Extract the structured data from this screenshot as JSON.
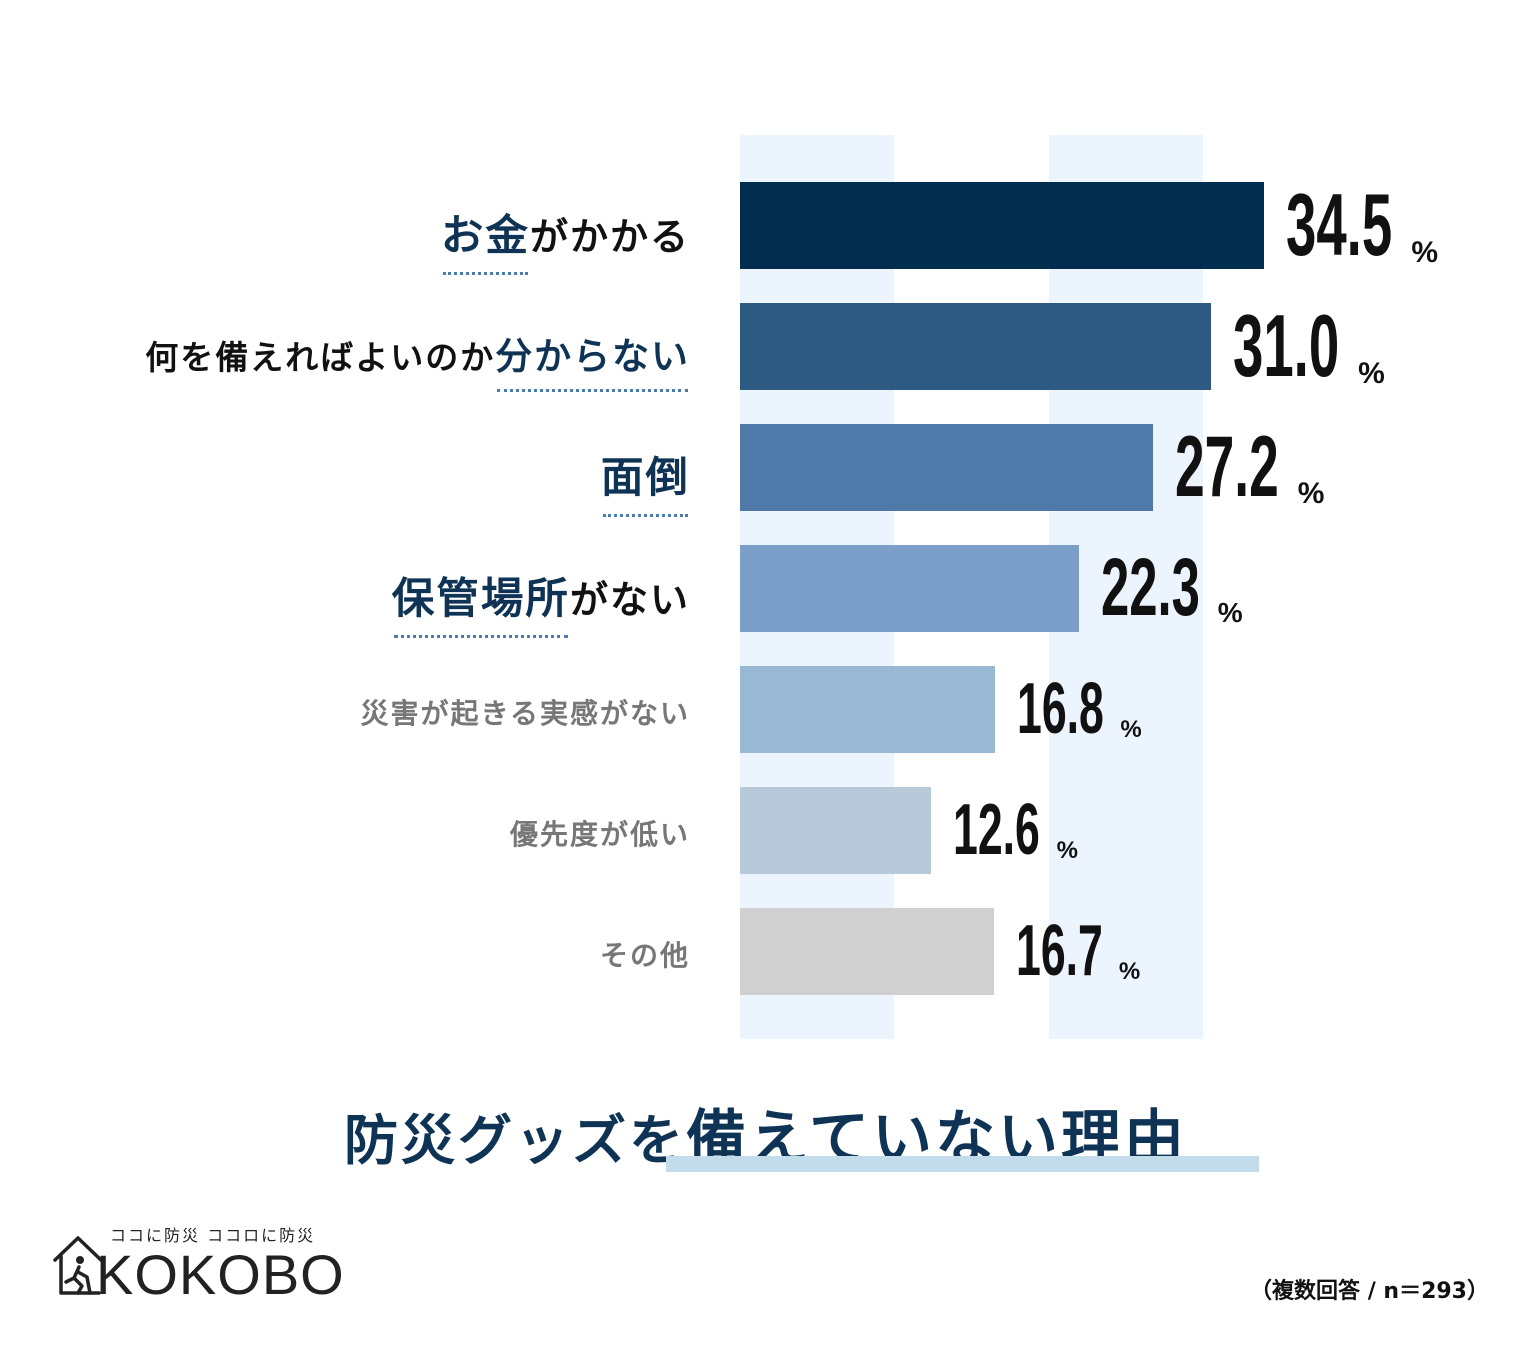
{
  "chart_data": {
    "type": "bar",
    "orientation": "horizontal",
    "title": "防災グッズを備えていない理由",
    "title_parts": [
      "防災グッズを",
      "備えていない理由"
    ],
    "categories": [
      {
        "parts": [
          "お金",
          "がかかる"
        ],
        "highlight": 0,
        "value": 34.5,
        "display": "34.5",
        "color": "#032d4e"
      },
      {
        "parts": [
          "何を備えればよいのか",
          "分からない"
        ],
        "highlight": 1,
        "value": 31.0,
        "display": "31.0",
        "color": "#2c5a82"
      },
      {
        "parts": [
          "面倒",
          ""
        ],
        "highlight": 0,
        "value": 27.2,
        "display": "27.2",
        "color": "#4f79a8"
      },
      {
        "parts": [
          "保管場所",
          "がない"
        ],
        "highlight": 0,
        "value": 22.3,
        "display": "22.3",
        "color": "#7b9fc8"
      },
      {
        "parts": [
          "災害が起きる実感がない",
          ""
        ],
        "highlight": -1,
        "value": 16.8,
        "display": "16.8",
        "color": "#98b8d4"
      },
      {
        "parts": [
          "優先度が低い",
          ""
        ],
        "highlight": -1,
        "value": 12.6,
        "display": "12.6",
        "color": "#b8cada"
      },
      {
        "parts": [
          "その他",
          ""
        ],
        "highlight": -1,
        "value": 16.7,
        "display": "16.7",
        "color": "#d0d0d0"
      }
    ],
    "unit": "%",
    "note": "（複数回答 / n＝293）",
    "grid": "alternating vertical bands",
    "band_color": "#ecf4fd"
  },
  "logo": {
    "tagline": "ココに防災 ココロに防災",
    "wordmark": "KOKOBO",
    "icon": "house-person-icon"
  },
  "colors": {
    "accent": "#0e3355",
    "emphasis_label": "#0e3355",
    "label_dark": "#111111",
    "label_muted": "#777777",
    "underline": "#c2dceb"
  }
}
